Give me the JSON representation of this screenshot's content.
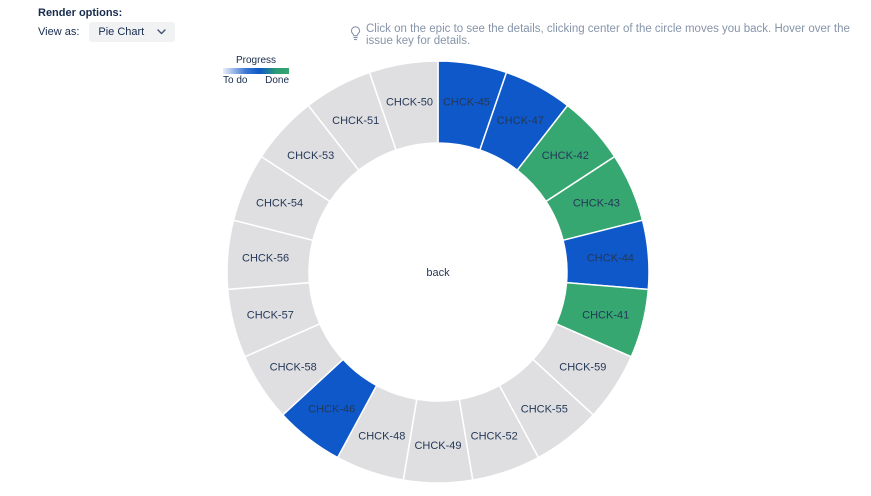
{
  "header": {
    "title": "Render options:",
    "view_as_label": "View as:",
    "view_as_value": "Pie Chart"
  },
  "hint": {
    "icon": "lightbulb-icon",
    "text": "Click on the epic to see the details, clicking center of the circle moves you back. Hover over the issue key for details."
  },
  "legend": {
    "title": "Progress",
    "left_label": "To do",
    "right_label": "Done",
    "gradient_colors": [
      "#e9eef8",
      "#3c76d2",
      "#0e58c9",
      "#2b9a75",
      "#36a771"
    ]
  },
  "chart_data": {
    "type": "pie",
    "shape": "donut",
    "direction": "clockwise",
    "start_angle_deg": 0,
    "center_label": "back",
    "label_color": "#253858",
    "separator_color": "#ffffff",
    "status_colors": {
      "todo": "#dfdfe1",
      "in_progress": "#0e58c9",
      "done": "#36a771"
    },
    "segments": [
      {
        "label": "CHCK-45",
        "status": "in_progress",
        "value": 1
      },
      {
        "label": "CHCK-47",
        "status": "in_progress",
        "value": 1
      },
      {
        "label": "CHCK-42",
        "status": "done",
        "value": 1
      },
      {
        "label": "CHCK-43",
        "status": "done",
        "value": 1
      },
      {
        "label": "CHCK-44",
        "status": "in_progress",
        "value": 1
      },
      {
        "label": "CHCK-41",
        "status": "done",
        "value": 1
      },
      {
        "label": "CHCK-59",
        "status": "todo",
        "value": 1
      },
      {
        "label": "CHCK-55",
        "status": "todo",
        "value": 1
      },
      {
        "label": "CHCK-52",
        "status": "todo",
        "value": 1
      },
      {
        "label": "CHCK-49",
        "status": "todo",
        "value": 1
      },
      {
        "label": "CHCK-48",
        "status": "todo",
        "value": 1
      },
      {
        "label": "CHCK-46",
        "status": "in_progress",
        "value": 1
      },
      {
        "label": "CHCK-58",
        "status": "todo",
        "value": 1
      },
      {
        "label": "CHCK-57",
        "status": "todo",
        "value": 1
      },
      {
        "label": "CHCK-56",
        "status": "todo",
        "value": 1
      },
      {
        "label": "CHCK-54",
        "status": "todo",
        "value": 1
      },
      {
        "label": "CHCK-53",
        "status": "todo",
        "value": 1
      },
      {
        "label": "CHCK-51",
        "status": "todo",
        "value": 1
      },
      {
        "label": "CHCK-50",
        "status": "todo",
        "value": 1
      }
    ]
  }
}
